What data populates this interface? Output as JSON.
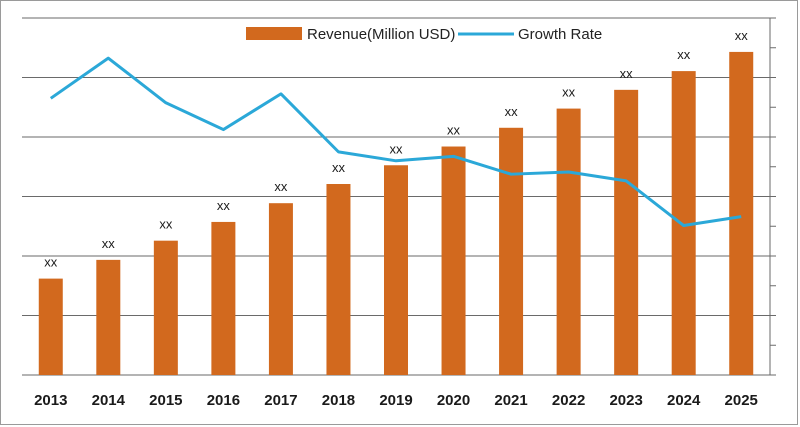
{
  "chart_data": {
    "type": "bar",
    "categories": [
      "2013",
      "2014",
      "2015",
      "2016",
      "2017",
      "2018",
      "2019",
      "2020",
      "2021",
      "2022",
      "2023",
      "2024",
      "2025"
    ],
    "series": [
      {
        "name": "Revenue(Million USD)",
        "type": "bar",
        "color": "#d2691e",
        "values": [
          21.6,
          25.8,
          30.1,
          34.3,
          38.5,
          42.8,
          47.0,
          51.2,
          55.4,
          59.7,
          63.9,
          68.1,
          72.4
        ],
        "data_labels": [
          "xx",
          "xx",
          "xx",
          "xx",
          "xx",
          "xx",
          "xx",
          "xx",
          "xx",
          "xx",
          "xx",
          "xx",
          "xx"
        ]
      },
      {
        "name": "Growth Rate",
        "type": "line",
        "color": "#2ba8d8",
        "values": [
          62,
          71,
          61,
          55,
          63,
          50,
          48,
          49,
          45,
          45.5,
          43.5,
          33.5,
          35.5
        ]
      }
    ],
    "ylim": [
      0,
      80
    ],
    "grid": true,
    "legend_placement": "top-center",
    "title": "",
    "xlabel": "",
    "ylabel": ""
  }
}
